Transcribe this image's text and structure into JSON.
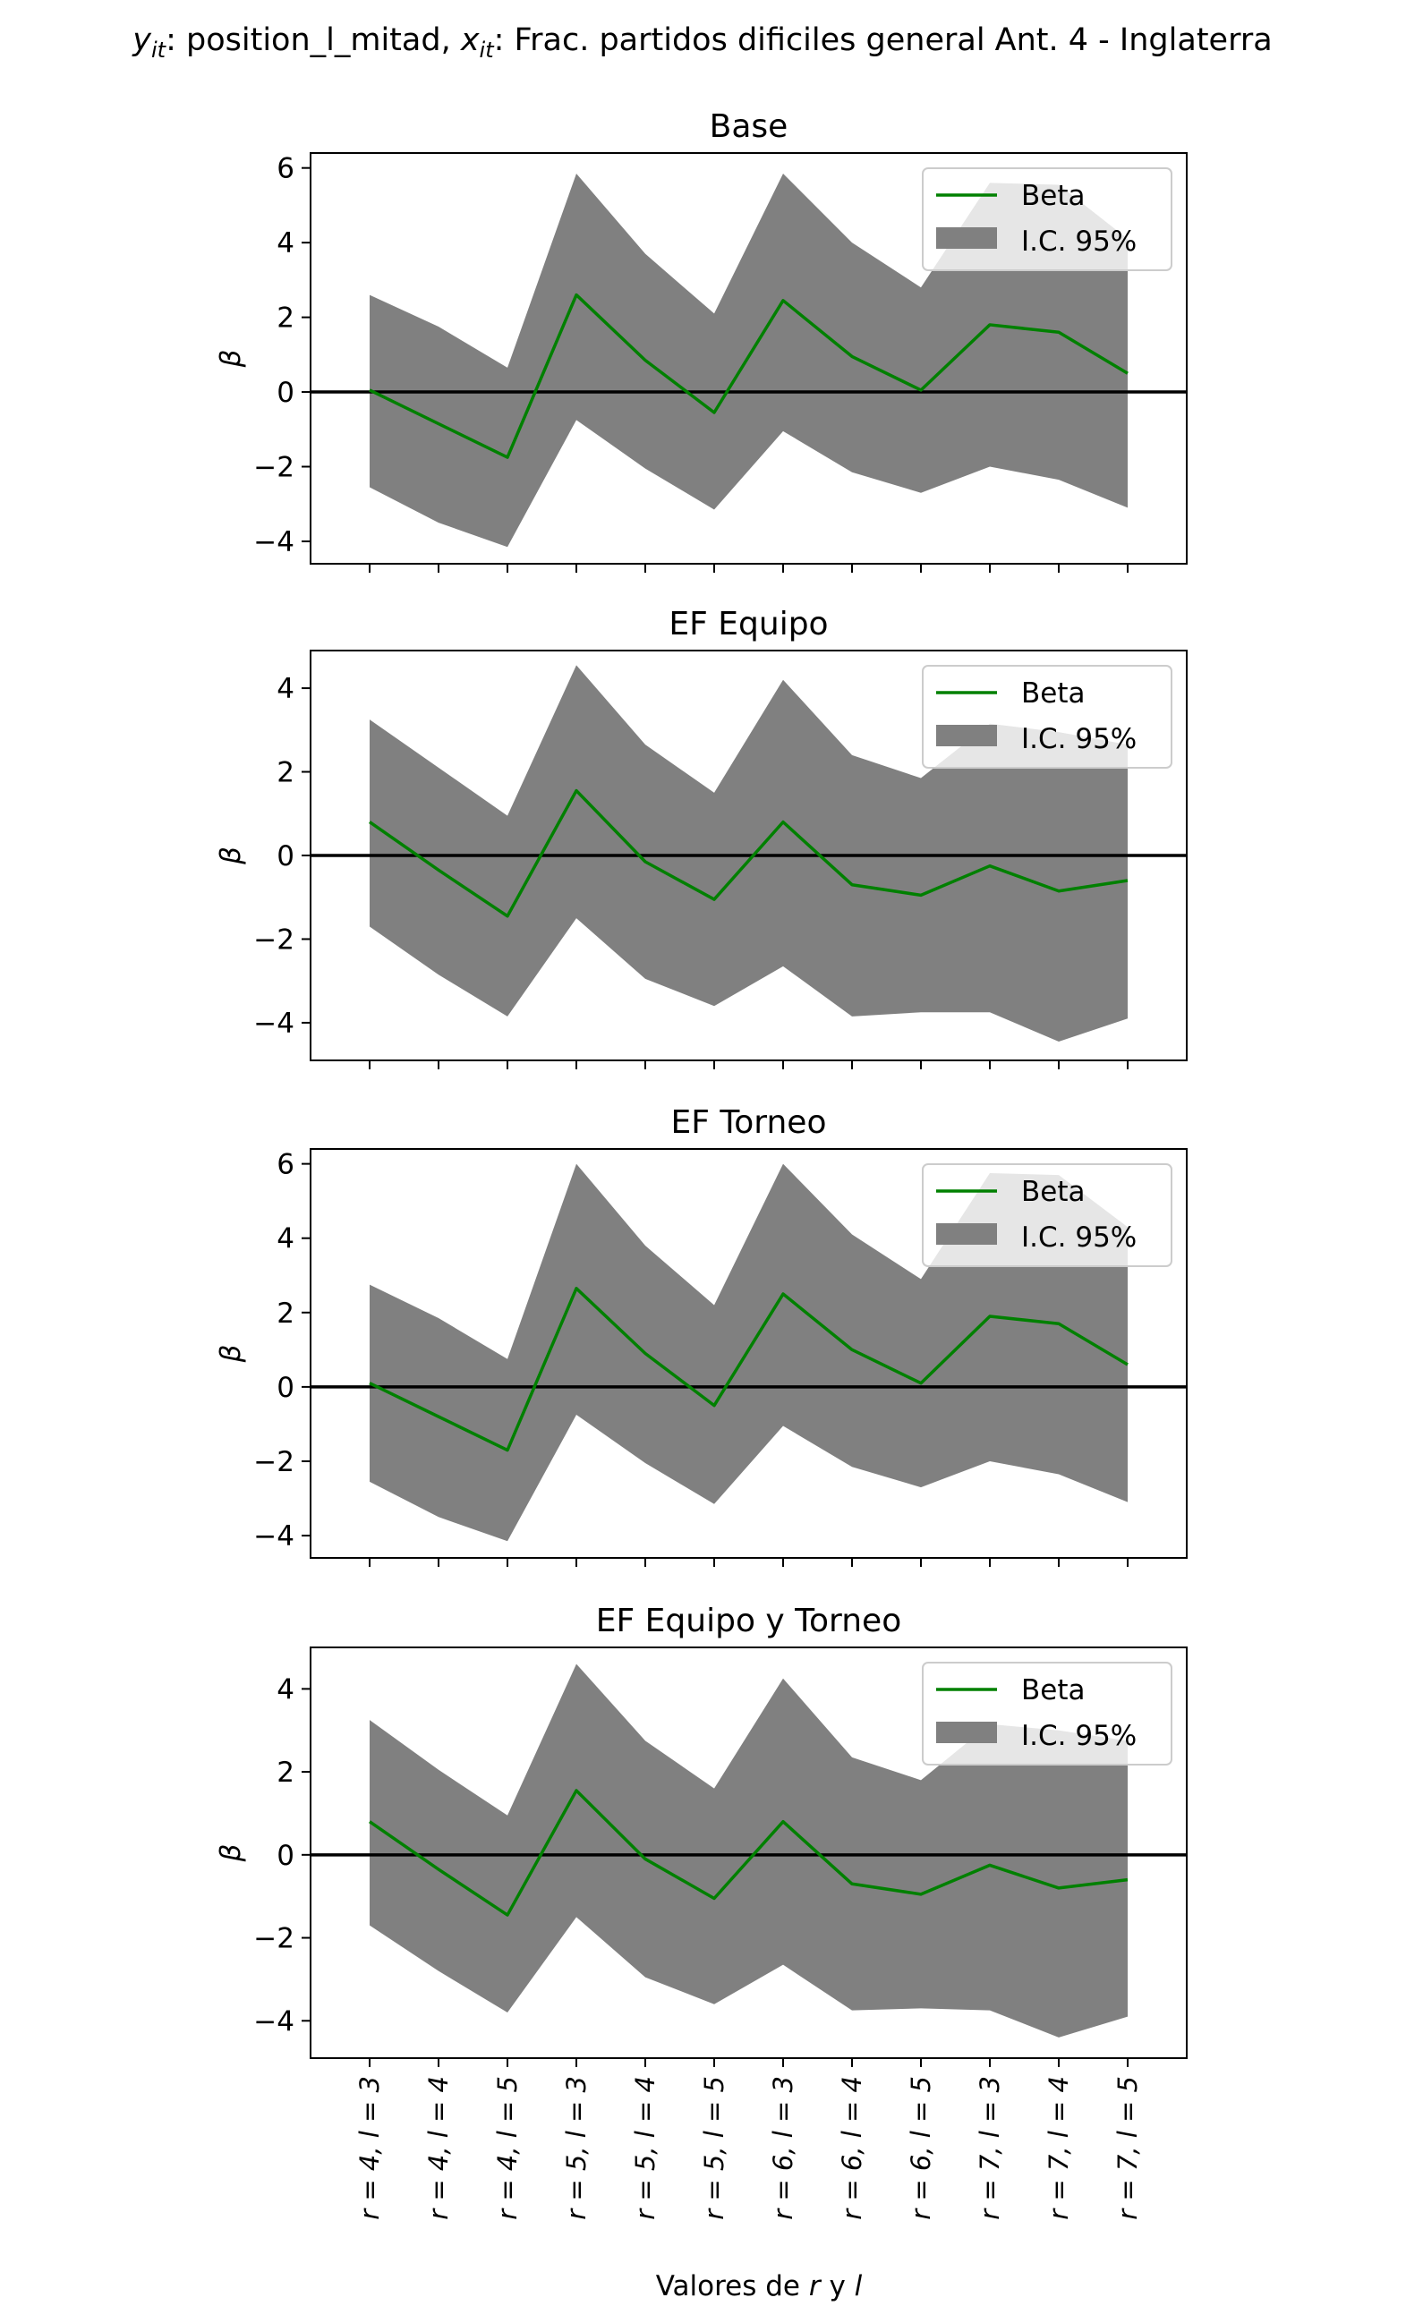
{
  "figure": {
    "title": {
      "y_var": "y",
      "y_sub": "it",
      "y_rest": ": position_l_mitad, ",
      "x_var": "x",
      "x_sub": "it",
      "x_rest": ": Frac. partidos dificiles general Ant. 4 - Inglaterra"
    },
    "xlabel": {
      "pre": "Valores de ",
      "r": "r",
      "mid": " y ",
      "l": "l"
    },
    "ylabel": "β",
    "colors": {
      "line": "#008000",
      "band": "#808080",
      "zero": "#000000",
      "frame": "#000000"
    }
  },
  "chart_data": [
    {
      "type": "line",
      "title": "Base",
      "categories": [
        "r = 4, l = 3",
        "r = 4, l = 4",
        "r = 4, l = 5",
        "r = 5, l = 3",
        "r = 5, l = 4",
        "r = 5, l = 5",
        "r = 6, l = 3",
        "r = 6, l = 4",
        "r = 6, l = 5",
        "r = 7, l = 3",
        "r = 7, l = 4",
        "r = 7, l = 5"
      ],
      "ylim": [
        -4.6,
        6.4
      ],
      "yticks": [
        -4,
        -2,
        0,
        2,
        4,
        6
      ],
      "legend": {
        "position": "top-right",
        "line_label": "Beta",
        "band_label": "I.C. 95%"
      },
      "series": [
        {
          "name": "Beta",
          "values": [
            0.05,
            -0.85,
            -1.75,
            2.6,
            0.85,
            -0.55,
            2.45,
            0.95,
            0.05,
            1.8,
            1.6,
            0.5
          ]
        }
      ],
      "ci_upper": [
        2.6,
        1.75,
        0.65,
        5.85,
        3.7,
        2.1,
        5.85,
        4.0,
        2.8,
        5.6,
        5.55,
        4.1
      ],
      "ci_lower": [
        -2.55,
        -3.5,
        -4.15,
        -0.75,
        -2.05,
        -3.15,
        -1.05,
        -2.15,
        -2.7,
        -2.0,
        -2.35,
        -3.1
      ]
    },
    {
      "type": "line",
      "title": "EF Equipo",
      "categories": [
        "r = 4, l = 3",
        "r = 4, l = 4",
        "r = 4, l = 5",
        "r = 5, l = 3",
        "r = 5, l = 4",
        "r = 5, l = 5",
        "r = 6, l = 3",
        "r = 6, l = 4",
        "r = 6, l = 5",
        "r = 7, l = 3",
        "r = 7, l = 4",
        "r = 7, l = 5"
      ],
      "ylim": [
        -4.9,
        4.9
      ],
      "yticks": [
        -4,
        -2,
        0,
        2,
        4
      ],
      "legend": {
        "position": "top-right",
        "line_label": "Beta",
        "band_label": "I.C. 95%"
      },
      "series": [
        {
          "name": "Beta",
          "values": [
            0.8,
            -0.35,
            -1.45,
            1.55,
            -0.15,
            -1.05,
            0.8,
            -0.7,
            -0.95,
            -0.25,
            -0.85,
            -0.6
          ]
        }
      ],
      "ci_upper": [
        3.25,
        2.1,
        0.95,
        4.55,
        2.65,
        1.5,
        4.2,
        2.4,
        1.85,
        3.15,
        2.95,
        2.65
      ],
      "ci_lower": [
        -1.7,
        -2.85,
        -3.85,
        -1.5,
        -2.95,
        -3.6,
        -2.65,
        -3.85,
        -3.75,
        -3.75,
        -4.45,
        -3.9
      ]
    },
    {
      "type": "line",
      "title": "EF Torneo",
      "categories": [
        "r = 4, l = 3",
        "r = 4, l = 4",
        "r = 4, l = 5",
        "r = 5, l = 3",
        "r = 5, l = 4",
        "r = 5, l = 5",
        "r = 6, l = 3",
        "r = 6, l = 4",
        "r = 6, l = 5",
        "r = 7, l = 3",
        "r = 7, l = 4",
        "r = 7, l = 5"
      ],
      "ylim": [
        -4.6,
        6.4
      ],
      "yticks": [
        -4,
        -2,
        0,
        2,
        4,
        6
      ],
      "legend": {
        "position": "top-right",
        "line_label": "Beta",
        "band_label": "I.C. 95%"
      },
      "series": [
        {
          "name": "Beta",
          "values": [
            0.1,
            -0.8,
            -1.7,
            2.65,
            0.9,
            -0.5,
            2.5,
            1.0,
            0.1,
            1.9,
            1.7,
            0.6
          ]
        }
      ],
      "ci_upper": [
        2.75,
        1.85,
        0.75,
        6.0,
        3.8,
        2.2,
        6.0,
        4.1,
        2.9,
        5.75,
        5.7,
        4.3
      ],
      "ci_lower": [
        -2.55,
        -3.5,
        -4.15,
        -0.75,
        -2.05,
        -3.15,
        -1.05,
        -2.15,
        -2.7,
        -2.0,
        -2.35,
        -3.1
      ]
    },
    {
      "type": "line",
      "title": "EF Equipo y Torneo",
      "categories": [
        "r = 4, l = 3",
        "r = 4, l = 4",
        "r = 4, l = 5",
        "r = 5, l = 3",
        "r = 5, l = 4",
        "r = 5, l = 5",
        "r = 6, l = 3",
        "r = 6, l = 4",
        "r = 6, l = 5",
        "r = 7, l = 3",
        "r = 7, l = 4",
        "r = 7, l = 5"
      ],
      "ylim": [
        -4.9,
        5.0
      ],
      "yticks": [
        -4,
        -2,
        0,
        2,
        4
      ],
      "legend": {
        "position": "top-right",
        "line_label": "Beta",
        "band_label": "I.C. 95%"
      },
      "series": [
        {
          "name": "Beta",
          "values": [
            0.8,
            -0.35,
            -1.45,
            1.55,
            -0.1,
            -1.05,
            0.8,
            -0.7,
            -0.95,
            -0.25,
            -0.8,
            -0.6
          ]
        }
      ],
      "ci_upper": [
        3.25,
        2.05,
        0.95,
        4.6,
        2.75,
        1.6,
        4.25,
        2.35,
        1.8,
        3.15,
        3.0,
        2.75
      ],
      "ci_lower": [
        -1.7,
        -2.8,
        -3.8,
        -1.5,
        -2.95,
        -3.6,
        -2.65,
        -3.75,
        -3.7,
        -3.75,
        -4.4,
        -3.9
      ]
    }
  ]
}
